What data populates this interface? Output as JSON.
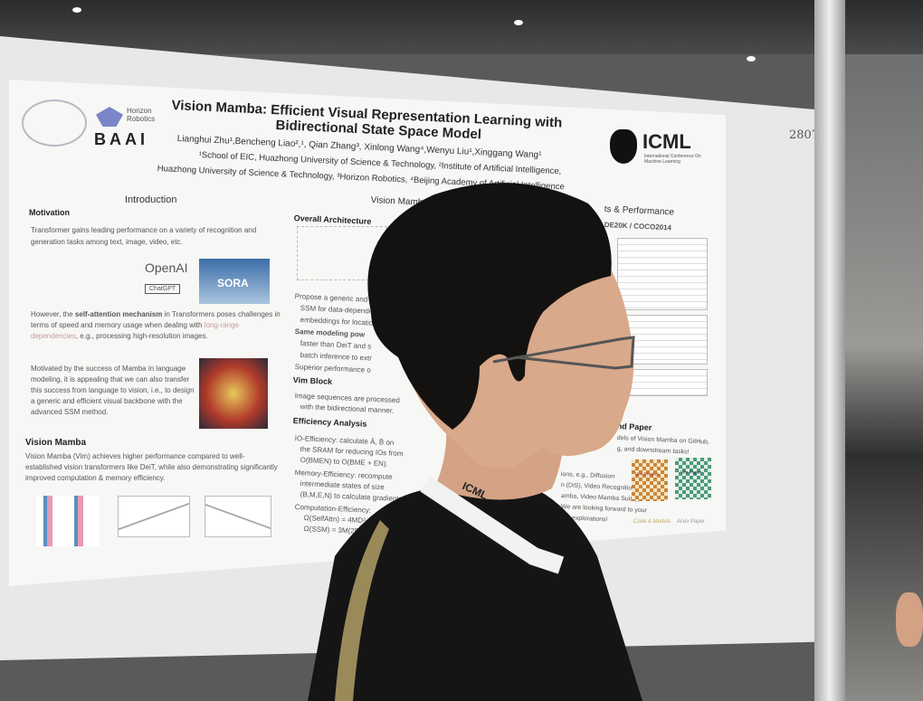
{
  "poster": {
    "title_line1": "Vision Mamba: Efficient Visual Representation Learning with",
    "title_line2": "Bidirectional State Space Model",
    "authors": "Lianghui Zhu¹,Bencheng Liao²,¹, Qian Zhang³, Xinlong Wang⁴,Wenyu Liu¹,Xinggang Wang¹",
    "affil1": "¹School of EIC, Huazhong University of Science & Technology, ²Institute of Artificial Intelligence,",
    "affil2": "Huazhong University of Science & Technology, ³Horizon Robotics, ⁴Beijing Academy of Artificial Intelligence",
    "logos": {
      "horizon": "Horizon Robotics",
      "baai": "BAAI",
      "icml": "ICML",
      "icml_sub": "International Conference On Machine Learning"
    },
    "intro": {
      "heading": "Introduction",
      "motivation": "Motivation",
      "p1": "Transformer gains leading performance on a variety of recognition and generation tasks among text, image, video, etc.",
      "openai": "OpenAI",
      "chatgpt": "ChatGPT",
      "sora": "SORA",
      "p2a": "However, the ",
      "p2b": "self-attention mechanism",
      "p2c": " in Transformers poses challenges in terms of speed and memory usage when dealing with",
      "p2d": "long-range dependencies",
      "p2e": ", e.g., processing high-resolution images.",
      "p3": "Motivated by the success of Mamba in language modeling, it is appealing that we can also transfer this success from language to vision, i.e., to design a generic and efficient visual backbone with the advanced SSM method."
    },
    "vim": {
      "heading": "Vision Mamba",
      "p1": "Vision Mamba (Vim) achieves higher performance compared to well-established vision transformers like DeiT, while also demonstrating significantly improved computation & memory efficiency."
    },
    "middle": {
      "heading": "Vision Mamba",
      "arch": "Overall Architecture",
      "b1": "Propose a generic and",
      "b1b": "SSM for data-depende",
      "b1c": "embeddings for locatio",
      "b2": "Same modeling pow",
      "b2b": "faster than DeiT and s",
      "b2c": "batch inference to extr",
      "b3": "Superior performance o",
      "block": "Vim Block",
      "b4": "Image sequences are processed",
      "b4b": "with the bidirectional manner.",
      "eff": "Efficiency Analysis",
      "e1": "IO-Efficiency: calculate Ā, B̄ on",
      "e1b": "the SRAM for reducing IOs from",
      "e1c": "O(BMEN) to O(BME + EN).",
      "e2": "Memory-Efficiency: recompute",
      "e2b": "intermediate states of size",
      "e2c": "(B,M,E,N) to calculate gradients.",
      "e3": "Computation-Efficiency:",
      "e3b": "Ω(SelfAttn) = 4MD² + 2",
      "e3c": "Ω(SSM) = 3M(2D)"
    },
    "right": {
      "heading": "ts & Performance",
      "sub": "DE20K / COCO2014",
      "code_heading": "nd Paper",
      "c1": "dels of Vision Mamba on GitHub,",
      "c2": "g, and downstream tasks!",
      "c3": "ions, e.g., Diffusion",
      "c4": "n (DiS), Video Recognition",
      "c5": "amba, Video Mamba Suite),",
      "c6": "We are looking forward to your",
      "c7": "her explorations!",
      "qr1": "Vim Project",
      "qr1_cap": "Code & Models",
      "qr2": "Vim Paper",
      "qr2_cap": "Arxiv Paper"
    },
    "board_number": "2807"
  },
  "lanyard": "ICML",
  "colors": {
    "poster_bg": "#f7f7f5",
    "board": "#e8e8e6",
    "shirt": "#151515",
    "hair": "#141210",
    "skin": "#d8a98a",
    "accent_link": "#c99a9a"
  }
}
